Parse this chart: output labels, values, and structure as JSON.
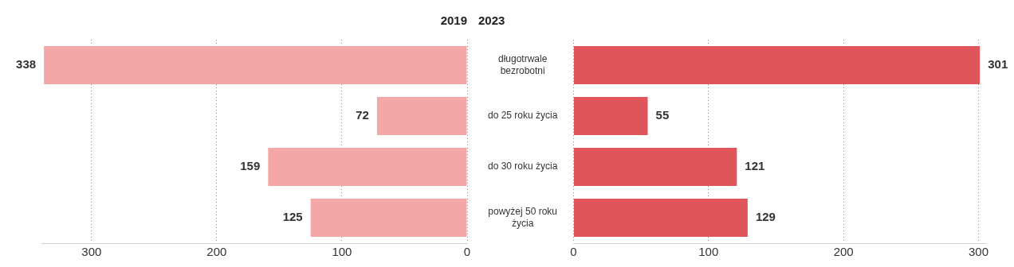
{
  "chart_data": [
    {
      "type": "bar",
      "orientation": "horizontal",
      "title": "2019",
      "categories": [
        null,
        null,
        null,
        null
      ],
      "values": [
        338,
        72,
        159,
        125
      ],
      "color": "#f4a7a7",
      "xlim": [
        340,
        0
      ],
      "xticks": [
        300,
        200,
        100,
        0
      ],
      "grid": "x",
      "data_labels": true,
      "tick_labels": "x"
    },
    {
      "type": "bar",
      "orientation": "horizontal",
      "title": "2023",
      "categories": [
        "długotrwale bezrobotni",
        "do 25 roku życia",
        "do 30 roku życia",
        "powyżej 50 roku życia"
      ],
      "values": [
        301,
        55,
        121,
        129
      ],
      "color": "#e0555a",
      "xlim": [
        0,
        305
      ],
      "xticks": [
        0,
        100,
        200,
        300
      ],
      "grid": "x",
      "data_labels": true
    }
  ]
}
